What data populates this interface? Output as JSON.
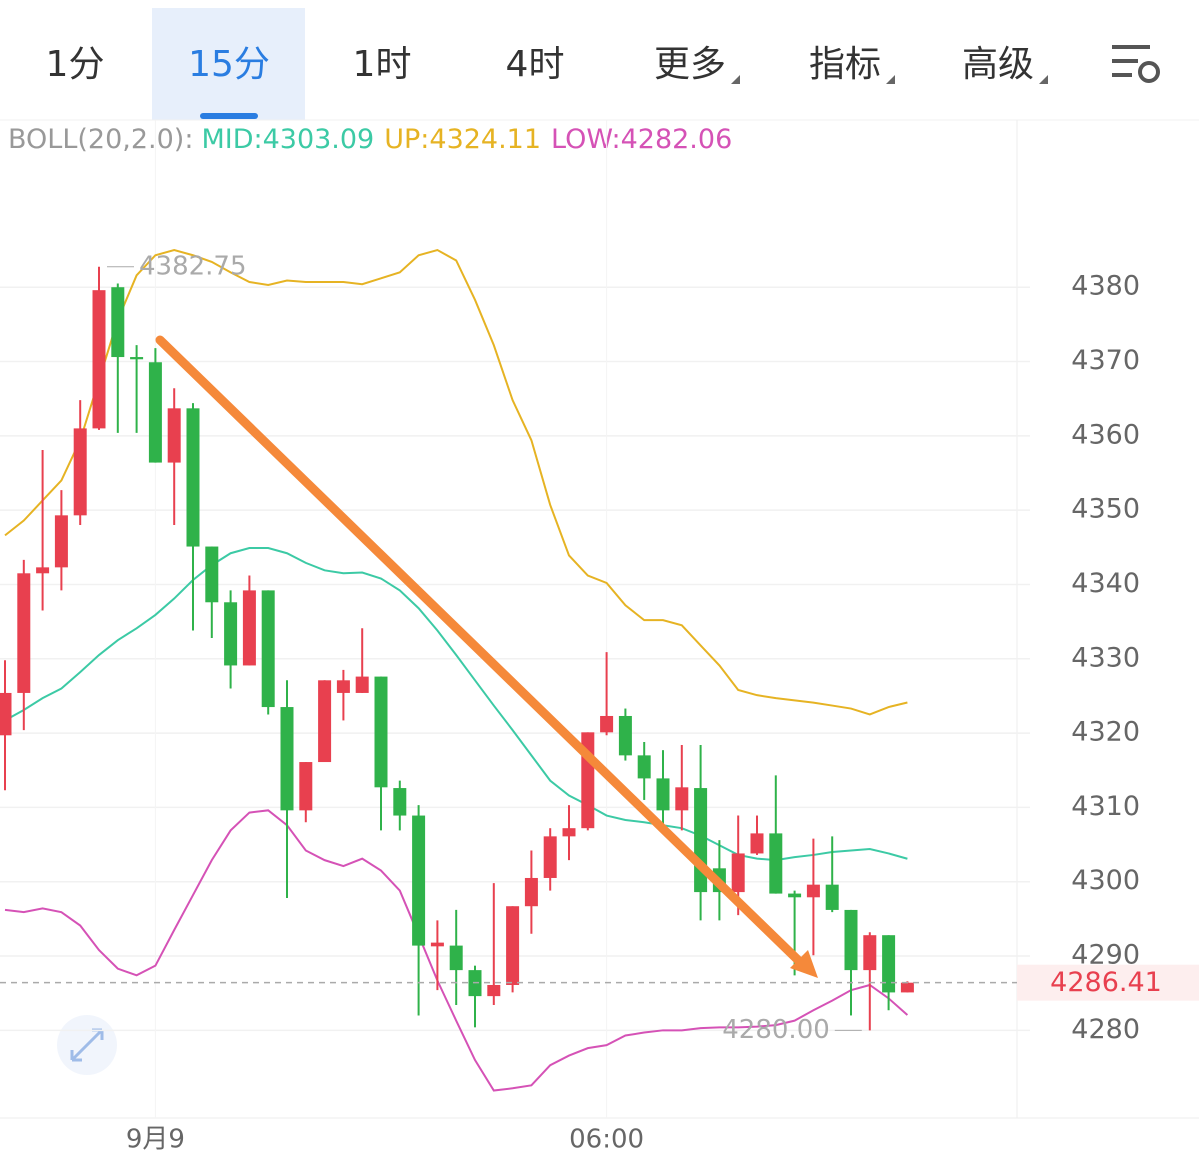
{
  "tabs": [
    "1分",
    "15分",
    "1时",
    "4时",
    "更多",
    "指标",
    "高级"
  ],
  "active_tab": 1,
  "indicator": {
    "name": "BOLL(20,2.0):",
    "mid": "MID:4303.09",
    "up": "UP:4324.11",
    "low": "LOW:4282.06"
  },
  "chart_data": {
    "type": "candlestick",
    "categories": [
      null,
      null,
      null,
      null,
      null,
      null,
      null,
      null,
      "9月9",
      null,
      null,
      null,
      null,
      null,
      null,
      null,
      null,
      null,
      null,
      null,
      null,
      null,
      null,
      null,
      null,
      null,
      null,
      null,
      null,
      null,
      null,
      null,
      "06:00",
      null,
      null,
      null,
      null,
      null,
      null,
      null,
      null,
      null,
      null,
      null,
      null,
      null,
      null,
      null,
      null
    ],
    "open": [
      4319.7,
      4325.4,
      4341.5,
      4342.3,
      4349.3,
      4361.0,
      4380.0,
      4370.6,
      4369.9,
      4356.4,
      4363.7,
      4345.1,
      4337.6,
      4329.1,
      4339.2,
      4323.5,
      4309.6,
      4316.1,
      4325.4,
      4325.4,
      4327.6,
      4312.6,
      4308.9,
      4291.3,
      4291.4,
      4288.1,
      4284.6,
      4286.1,
      4296.7,
      4300.5,
      4306.1,
      4307.2,
      4320.1,
      4322.3,
      4317.0,
      4313.9,
      4309.6,
      4312.6,
      4301.8,
      4298.6,
      4303.8,
      4306.5,
      4298.4,
      4297.9,
      4299.6,
      4296.2,
      4288.1,
      4292.8,
      4285.1
    ],
    "high": [
      4329.8,
      4343.3,
      4358.1,
      4352.7,
      4364.8,
      4382.75,
      4380.5,
      4372.2,
      4371.8,
      4366.4,
      4364.4,
      4345.1,
      4339.2,
      4341.2,
      4339.2,
      4327.1,
      4316.1,
      4327.1,
      4328.5,
      4334.1,
      4327.6,
      4313.6,
      4310.3,
      4294.8,
      4296.2,
      4288.7,
      4299.8,
      4296.7,
      4304.2,
      4307.2,
      4310.3,
      4320.1,
      4330.9,
      4323.3,
      4318.8,
      4317.7,
      4318.4,
      4318.4,
      4305.6,
      4308.9,
      4308.9,
      4314.3,
      4298.8,
      4305.8,
      4306.1,
      4296.2,
      4293.2,
      4292.8,
      4286.6
    ],
    "low": [
      4312.3,
      4320.4,
      4336.5,
      4339.2,
      4348.0,
      4360.8,
      4360.4,
      4360.4,
      4356.4,
      4348.0,
      4333.8,
      4332.8,
      4326.0,
      4329.1,
      4322.5,
      4297.8,
      4308.0,
      4316.1,
      4321.7,
      4325.4,
      4306.9,
      4306.9,
      4282.0,
      4285.4,
      4283.4,
      4280.4,
      4283.4,
      4285.1,
      4293.0,
      4298.8,
      4302.9,
      4306.9,
      4319.7,
      4316.3,
      4311.0,
      4307.6,
      4306.9,
      4294.8,
      4294.8,
      4295.5,
      4303.6,
      4298.4,
      4287.4,
      4290.1,
      4295.9,
      4282.0,
      4280.0,
      4282.7,
      4285.1
    ],
    "close": [
      4325.4,
      4341.5,
      4342.3,
      4349.3,
      4361.0,
      4379.6,
      4370.6,
      4370.3,
      4356.4,
      4363.7,
      4345.1,
      4337.6,
      4329.1,
      4339.2,
      4323.5,
      4309.6,
      4316.1,
      4327.1,
      4327.1,
      4327.6,
      4312.7,
      4308.9,
      4291.4,
      4291.8,
      4288.1,
      4284.6,
      4286.1,
      4296.7,
      4300.5,
      4306.1,
      4307.2,
      4320.1,
      4322.3,
      4317.0,
      4313.9,
      4309.6,
      4312.7,
      4298.6,
      4298.6,
      4303.8,
      4306.5,
      4298.4,
      4297.9,
      4299.6,
      4296.2,
      4288.1,
      4292.8,
      4285.1,
      4286.41
    ],
    "up_color": "#e8404f",
    "down_color": "#2fb24a",
    "series": [
      {
        "name": "UP",
        "color": "#e6b323",
        "values": [
          4346.6,
          4348.6,
          4351.3,
          4354.0,
          4359.4,
          4367.5,
          4375.6,
          4381.6,
          4384.3,
          4385.0,
          4384.3,
          4383.4,
          4382.0,
          4380.7,
          4380.3,
          4380.9,
          4380.7,
          4380.7,
          4380.7,
          4380.4,
          4381.2,
          4382.0,
          4384.3,
          4385.0,
          4383.6,
          4378.3,
          4372.2,
          4364.8,
          4359.4,
          4350.7,
          4343.9,
          4341.2,
          4340.2,
          4337.2,
          4335.2,
          4335.2,
          4334.5,
          4331.8,
          4329.1,
          4325.8,
          4325.1,
          4324.7,
          4324.4,
          4324.1,
          4323.7,
          4323.3,
          4322.5,
          4323.5,
          4324.11
        ]
      },
      {
        "name": "MID",
        "color": "#3ccaa5",
        "values": [
          4321.7,
          4323.1,
          4324.7,
          4326.0,
          4328.2,
          4330.5,
          4332.5,
          4334.1,
          4335.9,
          4338.1,
          4340.6,
          4342.6,
          4344.2,
          4344.9,
          4344.9,
          4344.2,
          4342.9,
          4341.9,
          4341.5,
          4341.6,
          4340.8,
          4339.2,
          4336.8,
          4333.8,
          4330.5,
          4327.1,
          4323.7,
          4320.4,
          4317.0,
          4313.6,
          4311.6,
          4310.3,
          4308.9,
          4308.3,
          4308.0,
          4307.6,
          4307.2,
          4306.2,
          4304.9,
          4303.6,
          4303.1,
          4302.9,
          4303.3,
          4303.6,
          4304.0,
          4304.2,
          4304.4,
          4303.8,
          4303.09
        ]
      },
      {
        "name": "LOW",
        "color": "#d552b6",
        "values": [
          4296.2,
          4295.9,
          4296.4,
          4295.9,
          4294.1,
          4290.8,
          4288.3,
          4287.4,
          4288.7,
          4293.5,
          4298.2,
          4302.9,
          4306.9,
          4309.3,
          4309.6,
          4307.6,
          4304.2,
          4302.9,
          4302.1,
          4303.1,
          4301.5,
          4298.8,
          4292.8,
          4286.7,
          4281.3,
          4276.0,
          4271.9,
          4272.2,
          4272.6,
          4275.3,
          4276.6,
          4277.6,
          4278.0,
          4279.3,
          4279.7,
          4280.0,
          4280.0,
          4280.3,
          4280.4,
          4280.4,
          4280.5,
          4280.7,
          4281.3,
          4282.7,
          4284.0,
          4285.4,
          4286.1,
          4284.3,
          4282.06
        ]
      }
    ],
    "ylim": [
      4268.2,
      4402.5
    ],
    "yticks": [
      4280,
      4290,
      4300,
      4310,
      4320,
      4330,
      4340,
      4350,
      4360,
      4370,
      4380
    ],
    "grid": true,
    "max_label": 4382.75,
    "min_label": {
      "value": 4280,
      "label": "4280.00"
    },
    "last_price": 4286.41
  }
}
